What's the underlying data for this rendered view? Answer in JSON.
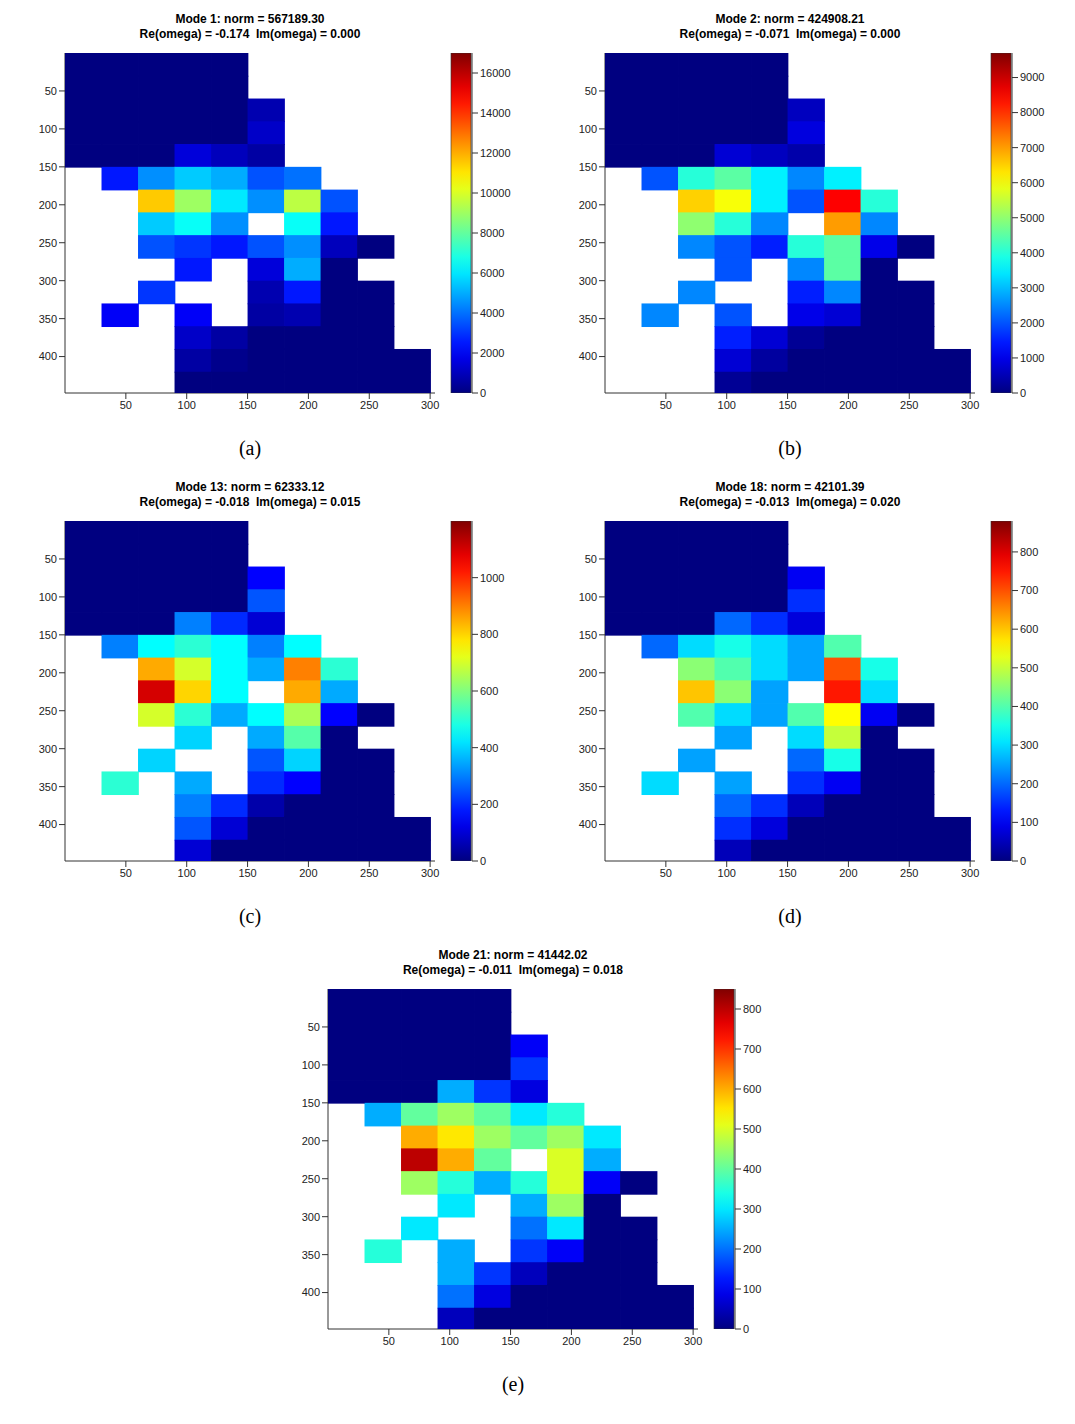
{
  "chart_data": [
    {
      "type": "heatmap",
      "title": "Mode 1: norm = 567189.30",
      "subtitle": "Re(omega) = -0.174  Im(omega) = 0.000",
      "panel_label": "(a)",
      "xlim": [
        0,
        304
      ],
      "ylim": [
        0,
        448
      ],
      "xticks": [
        50,
        100,
        150,
        200,
        250,
        300
      ],
      "yticks": [
        50,
        100,
        150,
        200,
        250,
        300,
        350,
        400
      ],
      "cell_x": [
        15,
        45,
        75,
        105,
        135,
        165,
        195,
        225,
        255,
        285
      ],
      "cell_y": [
        15,
        45,
        75,
        105,
        135,
        165,
        195,
        225,
        255,
        285,
        315,
        345,
        375,
        405,
        435
      ],
      "colorbar": {
        "range": [
          0,
          17000
        ],
        "ticks": [
          0,
          2000,
          4000,
          6000,
          8000,
          10000,
          12000,
          14000,
          16000
        ]
      },
      "cells": [
        [
          0,
          0,
          0,
          0,
          0,
          null,
          null,
          null,
          null,
          null
        ],
        [
          0,
          0,
          0,
          0,
          0,
          null,
          null,
          null,
          null,
          null
        ],
        [
          0,
          0,
          0,
          0,
          0,
          800,
          null,
          null,
          null,
          null
        ],
        [
          0,
          0,
          0,
          0,
          0,
          1200,
          null,
          null,
          null,
          null
        ],
        [
          0,
          0,
          0,
          1500,
          1000,
          600,
          null,
          null,
          null,
          null
        ],
        [
          null,
          2500,
          4500,
          5500,
          5000,
          3500,
          4000,
          null,
          null,
          null
        ],
        [
          null,
          null,
          11500,
          9000,
          6000,
          4500,
          9500,
          3500,
          null,
          null
        ],
        [
          null,
          null,
          5500,
          6500,
          4500,
          null,
          6500,
          2500,
          null,
          null
        ],
        [
          null,
          null,
          3500,
          3000,
          2500,
          3500,
          4500,
          1000,
          0,
          null
        ],
        [
          null,
          null,
          null,
          2500,
          null,
          1500,
          5000,
          0,
          null,
          null
        ],
        [
          null,
          null,
          3000,
          null,
          null,
          800,
          2500,
          0,
          0,
          null
        ],
        [
          null,
          2000,
          null,
          2000,
          null,
          600,
          800,
          0,
          0,
          null
        ],
        [
          null,
          null,
          null,
          1200,
          600,
          0,
          0,
          0,
          0,
          null
        ],
        [
          null,
          null,
          null,
          600,
          200,
          0,
          0,
          0,
          0,
          0
        ],
        [
          null,
          null,
          null,
          0,
          0,
          0,
          0,
          0,
          0,
          0
        ]
      ]
    },
    {
      "type": "heatmap",
      "title": "Mode 2: norm = 424908.21",
      "subtitle": "Re(omega) = -0.071  Im(omega) = 0.000",
      "panel_label": "(b)",
      "xlim": [
        0,
        304
      ],
      "ylim": [
        0,
        448
      ],
      "xticks": [
        50,
        100,
        150,
        200,
        250,
        300
      ],
      "yticks": [
        50,
        100,
        150,
        200,
        250,
        300,
        350,
        400
      ],
      "cell_x": [
        15,
        45,
        75,
        105,
        135,
        165,
        195,
        225,
        255,
        285
      ],
      "cell_y": [
        15,
        45,
        75,
        105,
        135,
        165,
        195,
        225,
        255,
        285,
        315,
        345,
        375,
        405,
        435
      ],
      "colorbar": {
        "range": [
          0,
          9700
        ],
        "ticks": [
          0,
          1000,
          2000,
          3000,
          4000,
          5000,
          6000,
          7000,
          8000,
          9000
        ]
      },
      "cells": [
        [
          0,
          0,
          0,
          0,
          0,
          null,
          null,
          null,
          null,
          null
        ],
        [
          0,
          0,
          0,
          0,
          0,
          null,
          null,
          null,
          null,
          null
        ],
        [
          0,
          0,
          0,
          0,
          0,
          600,
          null,
          null,
          null,
          null
        ],
        [
          0,
          0,
          0,
          0,
          0,
          900,
          null,
          null,
          null,
          null
        ],
        [
          0,
          0,
          0,
          800,
          600,
          400,
          null,
          null,
          null,
          null
        ],
        [
          null,
          2000,
          4000,
          4500,
          3500,
          2500,
          3500,
          null,
          null,
          null
        ],
        [
          null,
          null,
          6500,
          6000,
          3500,
          2000,
          8500,
          4000,
          null,
          null
        ],
        [
          null,
          null,
          5000,
          4000,
          2500,
          null,
          7000,
          2500,
          null,
          null
        ],
        [
          null,
          null,
          2500,
          2000,
          1500,
          4000,
          4500,
          1000,
          0,
          null
        ],
        [
          null,
          null,
          null,
          2000,
          null,
          2500,
          4500,
          0,
          null,
          null
        ],
        [
          null,
          null,
          2500,
          null,
          null,
          1500,
          2500,
          0,
          0,
          null
        ],
        [
          null,
          2500,
          null,
          2000,
          null,
          1000,
          800,
          0,
          0,
          null
        ],
        [
          null,
          null,
          null,
          1500,
          800,
          200,
          0,
          0,
          0,
          null
        ],
        [
          null,
          null,
          null,
          800,
          300,
          0,
          0,
          0,
          0,
          0
        ],
        [
          null,
          null,
          null,
          200,
          0,
          0,
          0,
          0,
          0,
          0
        ]
      ]
    },
    {
      "type": "heatmap",
      "title": "Mode 13: norm = 62333.12",
      "subtitle": "Re(omega) = -0.018  Im(omega) = 0.015",
      "panel_label": "(c)",
      "xlim": [
        0,
        304
      ],
      "ylim": [
        0,
        448
      ],
      "xticks": [
        50,
        100,
        150,
        200,
        250,
        300
      ],
      "yticks": [
        50,
        100,
        150,
        200,
        250,
        300,
        350,
        400
      ],
      "cell_x": [
        15,
        45,
        75,
        105,
        135,
        165,
        195,
        225,
        255,
        285
      ],
      "cell_y": [
        15,
        45,
        75,
        105,
        135,
        165,
        195,
        225,
        255,
        285,
        315,
        345,
        375,
        405,
        435
      ],
      "colorbar": {
        "range": [
          0,
          1200
        ],
        "ticks": [
          0,
          200,
          400,
          600,
          800,
          1000
        ]
      },
      "cells": [
        [
          0,
          0,
          0,
          0,
          0,
          null,
          null,
          null,
          null,
          null
        ],
        [
          0,
          0,
          0,
          0,
          0,
          null,
          null,
          null,
          null,
          null
        ],
        [
          0,
          0,
          0,
          0,
          0,
          150,
          null,
          null,
          null,
          null
        ],
        [
          0,
          0,
          0,
          0,
          0,
          250,
          null,
          null,
          null,
          null
        ],
        [
          0,
          0,
          0,
          300,
          200,
          100,
          null,
          null,
          null,
          null
        ],
        [
          null,
          300,
          450,
          500,
          450,
          300,
          450,
          null,
          null,
          null
        ],
        [
          null,
          null,
          850,
          700,
          450,
          350,
          900,
          500,
          null,
          null
        ],
        [
          null,
          null,
          1100,
          800,
          450,
          null,
          850,
          350,
          null,
          null
        ],
        [
          null,
          null,
          700,
          500,
          350,
          450,
          650,
          150,
          0,
          null
        ],
        [
          null,
          null,
          null,
          400,
          null,
          350,
          550,
          0,
          null,
          null
        ],
        [
          null,
          null,
          400,
          null,
          null,
          250,
          400,
          0,
          0,
          null
        ],
        [
          null,
          500,
          null,
          350,
          null,
          200,
          150,
          0,
          0,
          null
        ],
        [
          null,
          null,
          null,
          300,
          200,
          50,
          0,
          0,
          0,
          null
        ],
        [
          null,
          null,
          null,
          250,
          100,
          0,
          0,
          0,
          0,
          0
        ],
        [
          null,
          null,
          null,
          100,
          0,
          0,
          0,
          0,
          0,
          0
        ]
      ]
    },
    {
      "type": "heatmap",
      "title": "Mode 18: norm = 42101.39",
      "subtitle": "Re(omega) = -0.013  Im(omega) = 0.020",
      "panel_label": "(d)",
      "xlim": [
        0,
        304
      ],
      "ylim": [
        0,
        448
      ],
      "xticks": [
        50,
        100,
        150,
        200,
        250,
        300
      ],
      "yticks": [
        50,
        100,
        150,
        200,
        250,
        300,
        350,
        400
      ],
      "cell_x": [
        15,
        45,
        75,
        105,
        135,
        165,
        195,
        225,
        255,
        285
      ],
      "cell_y": [
        15,
        45,
        75,
        105,
        135,
        165,
        195,
        225,
        255,
        285,
        315,
        345,
        375,
        405,
        435
      ],
      "colorbar": {
        "range": [
          0,
          880
        ],
        "ticks": [
          0,
          100,
          200,
          300,
          400,
          500,
          600,
          700,
          800
        ]
      },
      "cells": [
        [
          0,
          0,
          0,
          0,
          0,
          null,
          null,
          null,
          null,
          null
        ],
        [
          0,
          0,
          0,
          0,
          0,
          null,
          null,
          null,
          null,
          null
        ],
        [
          0,
          0,
          0,
          0,
          0,
          100,
          null,
          null,
          null,
          null
        ],
        [
          0,
          0,
          0,
          0,
          0,
          150,
          null,
          null,
          null,
          null
        ],
        [
          0,
          0,
          0,
          200,
          150,
          80,
          null,
          null,
          null,
          null
        ],
        [
          null,
          200,
          300,
          350,
          300,
          250,
          400,
          null,
          null,
          null
        ],
        [
          null,
          null,
          450,
          400,
          300,
          250,
          700,
          350,
          null,
          null
        ],
        [
          null,
          null,
          600,
          450,
          250,
          null,
          750,
          300,
          null,
          null
        ],
        [
          null,
          null,
          400,
          300,
          250,
          400,
          550,
          100,
          0,
          null
        ],
        [
          null,
          null,
          null,
          250,
          null,
          300,
          500,
          0,
          null,
          null
        ],
        [
          null,
          null,
          250,
          null,
          null,
          200,
          350,
          0,
          0,
          null
        ],
        [
          null,
          300,
          null,
          250,
          null,
          150,
          100,
          0,
          0,
          null
        ],
        [
          null,
          null,
          null,
          200,
          150,
          50,
          0,
          0,
          0,
          null
        ],
        [
          null,
          null,
          null,
          150,
          80,
          0,
          0,
          0,
          0,
          0
        ],
        [
          null,
          null,
          null,
          50,
          0,
          0,
          0,
          0,
          0,
          0
        ]
      ]
    },
    {
      "type": "heatmap",
      "title": "Mode 21: norm = 41442.02",
      "subtitle": "Re(omega) = -0.011  Im(omega) = 0.018",
      "panel_label": "(e)",
      "xlim": [
        0,
        304
      ],
      "ylim": [
        0,
        448
      ],
      "xticks": [
        50,
        100,
        150,
        200,
        250,
        300
      ],
      "yticks": [
        50,
        100,
        150,
        200,
        250,
        300,
        350,
        400
      ],
      "cell_x": [
        15,
        45,
        75,
        105,
        135,
        165,
        195,
        225,
        255,
        285
      ],
      "cell_y": [
        15,
        45,
        75,
        105,
        135,
        165,
        195,
        225,
        255,
        285,
        315,
        345,
        375,
        405,
        435
      ],
      "colorbar": {
        "range": [
          0,
          850
        ],
        "ticks": [
          0,
          100,
          200,
          300,
          400,
          500,
          600,
          700,
          800
        ]
      },
      "cells": [
        [
          0,
          0,
          0,
          0,
          0,
          null,
          null,
          null,
          null,
          null
        ],
        [
          0,
          0,
          0,
          0,
          0,
          null,
          null,
          null,
          null,
          null
        ],
        [
          0,
          0,
          0,
          0,
          0,
          100,
          null,
          null,
          null,
          null
        ],
        [
          0,
          0,
          0,
          0,
          0,
          150,
          null,
          null,
          null,
          null
        ],
        [
          0,
          0,
          0,
          250,
          150,
          80,
          null,
          null,
          null,
          null
        ],
        [
          null,
          250,
          400,
          450,
          400,
          300,
          350,
          null,
          null,
          null
        ],
        [
          null,
          null,
          600,
          550,
          450,
          400,
          450,
          300,
          null,
          null
        ],
        [
          null,
          null,
          800,
          600,
          400,
          null,
          500,
          250,
          null,
          null
        ],
        [
          null,
          null,
          450,
          350,
          250,
          350,
          500,
          100,
          0,
          null
        ],
        [
          null,
          null,
          null,
          300,
          null,
          250,
          450,
          0,
          null,
          null
        ],
        [
          null,
          null,
          300,
          null,
          null,
          200,
          300,
          0,
          0,
          null
        ],
        [
          null,
          350,
          null,
          250,
          null,
          150,
          100,
          0,
          0,
          null
        ],
        [
          null,
          null,
          null,
          250,
          150,
          50,
          0,
          0,
          0,
          null
        ],
        [
          null,
          null,
          null,
          200,
          80,
          0,
          0,
          0,
          0,
          0
        ],
        [
          null,
          null,
          null,
          50,
          0,
          0,
          0,
          0,
          0,
          0
        ]
      ]
    }
  ]
}
